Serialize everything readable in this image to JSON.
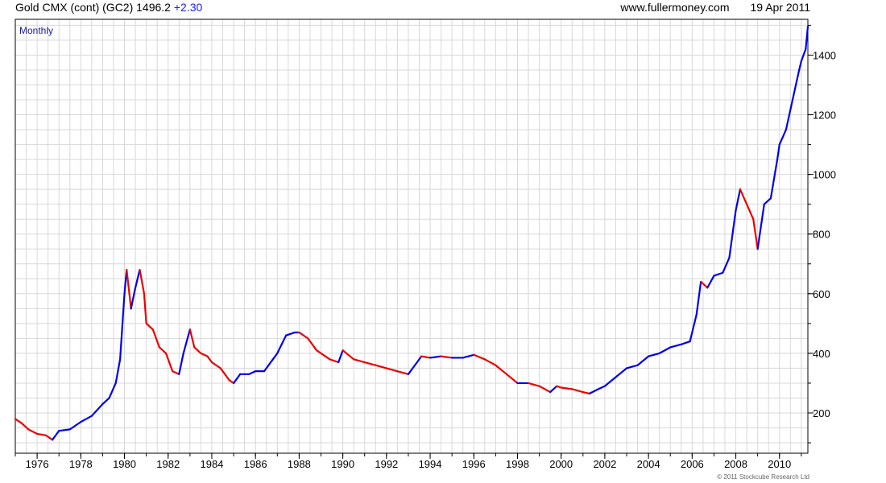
{
  "header": {
    "instrument": "Gold CMX (cont) (GC2)",
    "last_price": "1496.2",
    "change": "+2.30",
    "website": "www.fullermoney.com",
    "date": "19 Apr 2011"
  },
  "chart_data": {
    "type": "line",
    "periodicity_label": "Monthly",
    "copyright": "© 2011 Stockcube Research Ltd",
    "xlim": [
      1975.0,
      2011.3
    ],
    "ylim": [
      65,
      1520
    ],
    "y_axis_side": "right",
    "x_ticks": [
      "1976",
      "1978",
      "1980",
      "1982",
      "1984",
      "1986",
      "1988",
      "1990",
      "1992",
      "1994",
      "1996",
      "1998",
      "2000",
      "2002",
      "2004",
      "2006",
      "2008",
      "2010"
    ],
    "y_ticks": [
      200,
      400,
      600,
      800,
      1000,
      1200,
      1400
    ],
    "grid": true,
    "colors": {
      "up": "#0000ee",
      "down": "#ee0000",
      "grid": "#d8d8d8",
      "frame": "#000000"
    },
    "series": [
      {
        "x": [
          1975.0,
          1975.3,
          1975.6,
          1976.0,
          1976.4,
          1976.7,
          1977.0,
          1977.5,
          1978.0,
          1978.5,
          1979.0,
          1979.3,
          1979.6,
          1979.8,
          1980.0,
          1980.1,
          1980.3,
          1980.5,
          1980.7,
          1980.9,
          1981.0,
          1981.3,
          1981.6,
          1981.9,
          1982.2,
          1982.5,
          1982.7,
          1983.0,
          1983.2,
          1983.5,
          1983.8,
          1984.0,
          1984.4,
          1984.8,
          1985.0,
          1985.3,
          1985.7,
          1986.0,
          1986.4,
          1986.8,
          1987.0,
          1987.4,
          1987.8,
          1988.0,
          1988.4,
          1988.8,
          1989.0,
          1989.4,
          1989.8,
          1990.0,
          1990.5,
          1991.0,
          1991.5,
          1992.0,
          1992.5,
          1993.0,
          1993.3,
          1993.6,
          1994.0,
          1994.5,
          1995.0,
          1995.5,
          1996.0,
          1996.5,
          1997.0,
          1997.5,
          1998.0,
          1998.5,
          1999.0,
          1999.5,
          1999.8,
          2000.0,
          2000.5,
          2001.0,
          2001.3,
          2001.7,
          2002.0,
          2002.5,
          2003.0,
          2003.5,
          2004.0,
          2004.5,
          2005.0,
          2005.5,
          2005.9,
          2006.2,
          2006.4,
          2006.7,
          2007.0,
          2007.4,
          2007.7,
          2008.0,
          2008.2,
          2008.5,
          2008.8,
          2009.0,
          2009.3,
          2009.6,
          2009.9,
          2010.0,
          2010.3,
          2010.6,
          2010.9,
          2011.0,
          2011.2,
          2011.3
        ],
        "y": [
          180,
          165,
          145,
          130,
          125,
          110,
          140,
          145,
          170,
          190,
          230,
          250,
          300,
          380,
          600,
          680,
          550,
          620,
          680,
          600,
          500,
          480,
          420,
          400,
          340,
          330,
          400,
          480,
          420,
          400,
          390,
          370,
          350,
          310,
          300,
          330,
          330,
          340,
          340,
          380,
          400,
          460,
          470,
          470,
          450,
          410,
          400,
          380,
          370,
          410,
          380,
          370,
          360,
          350,
          340,
          330,
          360,
          390,
          385,
          390,
          385,
          385,
          395,
          380,
          360,
          330,
          300,
          300,
          290,
          270,
          290,
          285,
          280,
          270,
          265,
          280,
          290,
          320,
          350,
          360,
          390,
          400,
          420,
          430,
          440,
          530,
          640,
          620,
          660,
          670,
          720,
          880,
          950,
          900,
          850,
          750,
          900,
          920,
          1050,
          1100,
          1150,
          1250,
          1350,
          1380,
          1420,
          1496
        ]
      }
    ]
  }
}
